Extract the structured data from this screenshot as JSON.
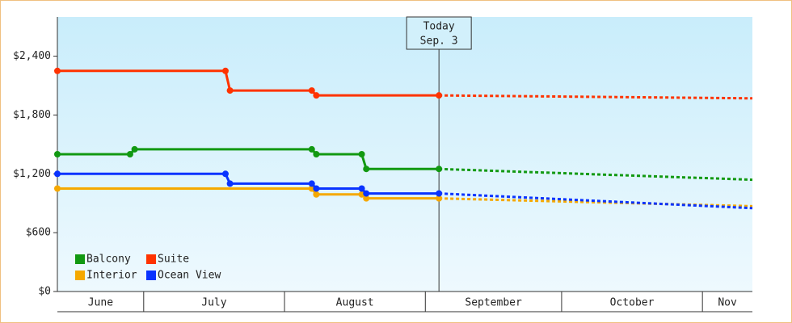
{
  "chart_data": {
    "type": "line",
    "months": [
      "June",
      "July",
      "August",
      "September",
      "October",
      "Nov"
    ],
    "xlim": [
      0,
      153
    ],
    "xticks": [
      19,
      50,
      81,
      111,
      142
    ],
    "ylim": [
      0,
      2800
    ],
    "yticks": [
      {
        "value": 0,
        "label": "$0"
      },
      {
        "value": 600,
        "label": "$600"
      },
      {
        "value": 1200,
        "label": "$1,200"
      },
      {
        "value": 1800,
        "label": "$1,800"
      },
      {
        "value": 2400,
        "label": "$2,400"
      }
    ],
    "today": {
      "x": 84,
      "label": "Today",
      "date": "Sep. 3"
    },
    "series": [
      {
        "name": "Balcony",
        "color": "#129912",
        "x": [
          0,
          16,
          17,
          56,
          57,
          67,
          68,
          84
        ],
        "values": [
          1400,
          1400,
          1450,
          1450,
          1400,
          1400,
          1250,
          1250
        ],
        "forecast": {
          "x": [
            84,
            153
          ],
          "values": [
            1250,
            1140
          ]
        }
      },
      {
        "name": "Suite",
        "color": "#ff3300",
        "x": [
          0,
          37,
          38,
          56,
          57,
          84
        ],
        "values": [
          2250,
          2250,
          2050,
          2050,
          2000,
          2000
        ],
        "forecast": {
          "x": [
            84,
            153
          ],
          "values": [
            2000,
            1970
          ]
        }
      },
      {
        "name": "Interior",
        "color": "#f5a800",
        "x": [
          0,
          56,
          57,
          67,
          68,
          84
        ],
        "values": [
          1050,
          1050,
          990,
          990,
          950,
          950
        ],
        "forecast": {
          "x": [
            84,
            153
          ],
          "values": [
            950,
            870
          ]
        }
      },
      {
        "name": "Ocean View",
        "color": "#0a33ff",
        "x": [
          0,
          37,
          38,
          56,
          57,
          67,
          68,
          84
        ],
        "values": [
          1200,
          1200,
          1100,
          1100,
          1050,
          1050,
          1000,
          1000
        ],
        "forecast": {
          "x": [
            84,
            153
          ],
          "values": [
            1000,
            850
          ]
        }
      }
    ]
  }
}
